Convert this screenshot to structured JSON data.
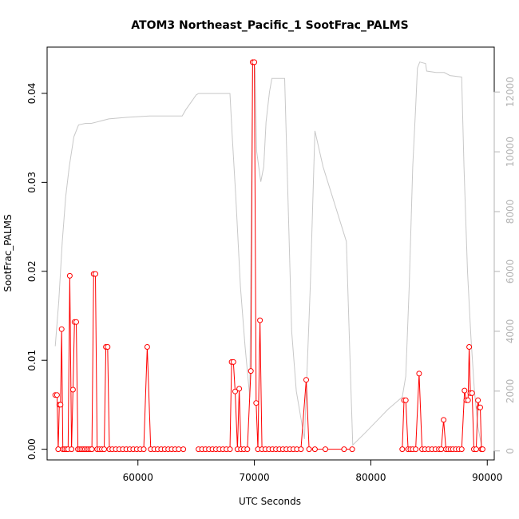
{
  "chart_data": {
    "type": "line",
    "title": "ATOM3 Northeast_Pacific_1 SootFrac_PALMS",
    "xlabel": "UTC Seconds",
    "ylabel": "SootFrac_PALMS",
    "xlim": [
      52200,
      90600
    ],
    "ylim": [
      -0.0012,
      0.0452
    ],
    "y2lim": [
      -300,
      13500
    ],
    "x_ticks": [
      60000,
      70000,
      80000,
      90000
    ],
    "x_tick_labels": [
      "60000",
      "70000",
      "80000",
      "90000"
    ],
    "y_ticks": [
      0.0,
      0.01,
      0.02,
      0.03,
      0.04
    ],
    "y_tick_labels": [
      "0.00",
      "0.01",
      "0.02",
      "0.03",
      "0.04"
    ],
    "y2_ticks": [
      0,
      2000,
      4000,
      6000,
      8000,
      10000,
      12000
    ],
    "y2_tick_labels": [
      "0",
      "2000",
      "4000",
      "6000",
      "8000",
      "10000",
      "12000"
    ],
    "colors": {
      "soot": "#ff0000",
      "altitude": "#c8c8c8",
      "axis": "#000000",
      "right_axis": "#b3b3b3"
    },
    "series": [
      {
        "color": "#ff0000",
        "style": "line+open-circles",
        "segments": [
          [
            [
              52900,
              0.0061
            ],
            [
              53050,
              0.0061
            ],
            [
              53150,
              0.0
            ],
            [
              53250,
              0.005
            ],
            [
              53350,
              0.005
            ],
            [
              53450,
              0.0135
            ],
            [
              53550,
              0.0
            ],
            [
              53700,
              0.0
            ],
            [
              53850,
              0.0
            ],
            [
              54000,
              0.0
            ],
            [
              54150,
              0.0195
            ],
            [
              54300,
              0.0
            ],
            [
              54420,
              0.0067
            ],
            [
              54550,
              0.0143
            ],
            [
              54700,
              0.0143
            ],
            [
              54850,
              0.0
            ],
            [
              55000,
              0.0
            ],
            [
              55150,
              0.0
            ],
            [
              55300,
              0.0
            ],
            [
              55450,
              0.0
            ],
            [
              55600,
              0.0
            ],
            [
              55750,
              0.0
            ],
            [
              55900,
              0.0
            ],
            [
              56050,
              0.0
            ],
            [
              56200,
              0.0197
            ],
            [
              56350,
              0.0197
            ],
            [
              56500,
              0.0
            ],
            [
              56700,
              0.0
            ],
            [
              56900,
              0.0
            ],
            [
              57100,
              0.0
            ],
            [
              57250,
              0.0115
            ],
            [
              57400,
              0.0115
            ],
            [
              57550,
              0.0
            ],
            [
              57800,
              0.0
            ],
            [
              58100,
              0.0
            ],
            [
              58400,
              0.0
            ],
            [
              58700,
              0.0
            ],
            [
              59000,
              0.0
            ],
            [
              59300,
              0.0
            ],
            [
              59600,
              0.0
            ],
            [
              59900,
              0.0
            ],
            [
              60200,
              0.0
            ],
            [
              60500,
              0.0
            ],
            [
              60800,
              0.0115
            ],
            [
              61100,
              0.0
            ],
            [
              61400,
              0.0
            ],
            [
              61700,
              0.0
            ],
            [
              62000,
              0.0
            ],
            [
              62300,
              0.0
            ],
            [
              62600,
              0.0
            ],
            [
              62900,
              0.0
            ],
            [
              63200,
              0.0
            ],
            [
              63500,
              0.0
            ],
            [
              63900,
              0.0
            ]
          ],
          [
            [
              65200,
              0.0
            ],
            [
              65500,
              0.0
            ],
            [
              65800,
              0.0
            ],
            [
              66100,
              0.0
            ],
            [
              66400,
              0.0
            ],
            [
              66700,
              0.0
            ],
            [
              67000,
              0.0
            ],
            [
              67300,
              0.0
            ],
            [
              67600,
              0.0
            ],
            [
              67900,
              0.0
            ],
            [
              68050,
              0.0098
            ],
            [
              68200,
              0.0098
            ],
            [
              68350,
              0.0065
            ],
            [
              68550,
              0.0
            ],
            [
              68700,
              0.0068
            ],
            [
              68850,
              0.0
            ],
            [
              69100,
              0.0
            ],
            [
              69400,
              0.0
            ],
            [
              69700,
              0.0088
            ],
            [
              69850,
              0.0435
            ],
            [
              70000,
              0.0435
            ],
            [
              70150,
              0.0052
            ],
            [
              70300,
              0.0
            ],
            [
              70480,
              0.0145
            ],
            [
              70650,
              0.0
            ],
            [
              70950,
              0.0
            ],
            [
              71250,
              0.0
            ],
            [
              71550,
              0.0
            ],
            [
              71850,
              0.0
            ],
            [
              72150,
              0.0
            ],
            [
              72450,
              0.0
            ],
            [
              72750,
              0.0
            ],
            [
              73050,
              0.0
            ],
            [
              73350,
              0.0
            ],
            [
              73650,
              0.0
            ],
            [
              74000,
              0.0
            ],
            [
              74450,
              0.0078
            ],
            [
              74700,
              0.0
            ],
            [
              75200,
              0.0
            ],
            [
              76100,
              0.0
            ],
            [
              77700,
              0.0
            ],
            [
              78400,
              0.0
            ]
          ],
          [
            [
              82700,
              0.0
            ],
            [
              82850,
              0.0055
            ],
            [
              83000,
              0.0055
            ],
            [
              83200,
              0.0
            ],
            [
              83400,
              0.0
            ],
            [
              83600,
              0.0
            ],
            [
              83850,
              0.0
            ],
            [
              84150,
              0.0085
            ],
            [
              84400,
              0.0
            ],
            [
              84650,
              0.0
            ],
            [
              84950,
              0.0
            ],
            [
              85250,
              0.0
            ],
            [
              85550,
              0.0
            ],
            [
              85850,
              0.0
            ],
            [
              86050,
              0.0
            ],
            [
              86250,
              0.0033
            ],
            [
              86450,
              0.0
            ],
            [
              86650,
              0.0
            ],
            [
              86850,
              0.0
            ],
            [
              87050,
              0.0
            ],
            [
              87300,
              0.0
            ],
            [
              87550,
              0.0
            ],
            [
              87800,
              0.0
            ],
            [
              88050,
              0.0066
            ],
            [
              88200,
              0.0055
            ],
            [
              88350,
              0.0055
            ],
            [
              88450,
              0.0115
            ],
            [
              88550,
              0.0063
            ],
            [
              88700,
              0.0063
            ],
            [
              88850,
              0.0
            ],
            [
              89050,
              0.0
            ],
            [
              89200,
              0.0055
            ],
            [
              89300,
              0.0047
            ],
            [
              89400,
              0.0047
            ],
            [
              89500,
              0.0
            ],
            [
              89600,
              0.0
            ]
          ]
        ]
      },
      {
        "color": "#c8c8c8",
        "axis": "right",
        "style": "line",
        "segments": [
          [
            [
              52900,
              3500
            ],
            [
              53200,
              5000
            ],
            [
              53500,
              7000
            ],
            [
              53800,
              8500
            ],
            [
              54100,
              9500
            ],
            [
              54500,
              10500
            ],
            [
              54900,
              10900
            ],
            [
              55500,
              10950
            ],
            [
              56000,
              10950
            ],
            [
              56500,
              11000
            ],
            [
              57500,
              11100
            ],
            [
              59000,
              11150
            ],
            [
              61000,
              11200
            ],
            [
              63800,
              11200
            ],
            [
              64100,
              11400
            ],
            [
              65000,
              11900
            ],
            [
              65200,
              11950
            ],
            [
              67900,
              11950
            ],
            [
              68100,
              10500
            ],
            [
              68400,
              8500
            ],
            [
              68800,
              5500
            ],
            [
              69200,
              3500
            ],
            [
              69600,
              1800
            ],
            [
              69850,
              13050
            ],
            [
              70050,
              12800
            ],
            [
              70200,
              10000
            ],
            [
              70550,
              9000
            ],
            [
              70800,
              9500
            ],
            [
              71000,
              11000
            ],
            [
              71300,
              12000
            ],
            [
              71500,
              12450
            ],
            [
              72600,
              12450
            ],
            [
              72850,
              9000
            ],
            [
              73200,
              4000
            ],
            [
              73600,
              2000
            ],
            [
              74300,
              400
            ],
            [
              74800,
              5500
            ],
            [
              75200,
              10700
            ],
            [
              75900,
              9500
            ],
            [
              76700,
              8500
            ],
            [
              77500,
              7500
            ],
            [
              77900,
              7000
            ],
            [
              78300,
              2000
            ],
            [
              78450,
              200
            ],
            [
              79500,
              600
            ],
            [
              80500,
              1000
            ],
            [
              81500,
              1400
            ],
            [
              82700,
              1800
            ],
            [
              83000,
              2500
            ],
            [
              83300,
              5500
            ],
            [
              83600,
              9500
            ],
            [
              83850,
              11500
            ],
            [
              84000,
              12800
            ],
            [
              84200,
              13000
            ],
            [
              84700,
              12950
            ],
            [
              84800,
              12700
            ],
            [
              85600,
              12650
            ],
            [
              86300,
              12650
            ],
            [
              86800,
              12550
            ],
            [
              87800,
              12500
            ],
            [
              88000,
              9500
            ],
            [
              88300,
              6000
            ],
            [
              88600,
              3800
            ],
            [
              88900,
              2000
            ],
            [
              89200,
              800
            ],
            [
              89600,
              0
            ]
          ]
        ]
      }
    ]
  }
}
